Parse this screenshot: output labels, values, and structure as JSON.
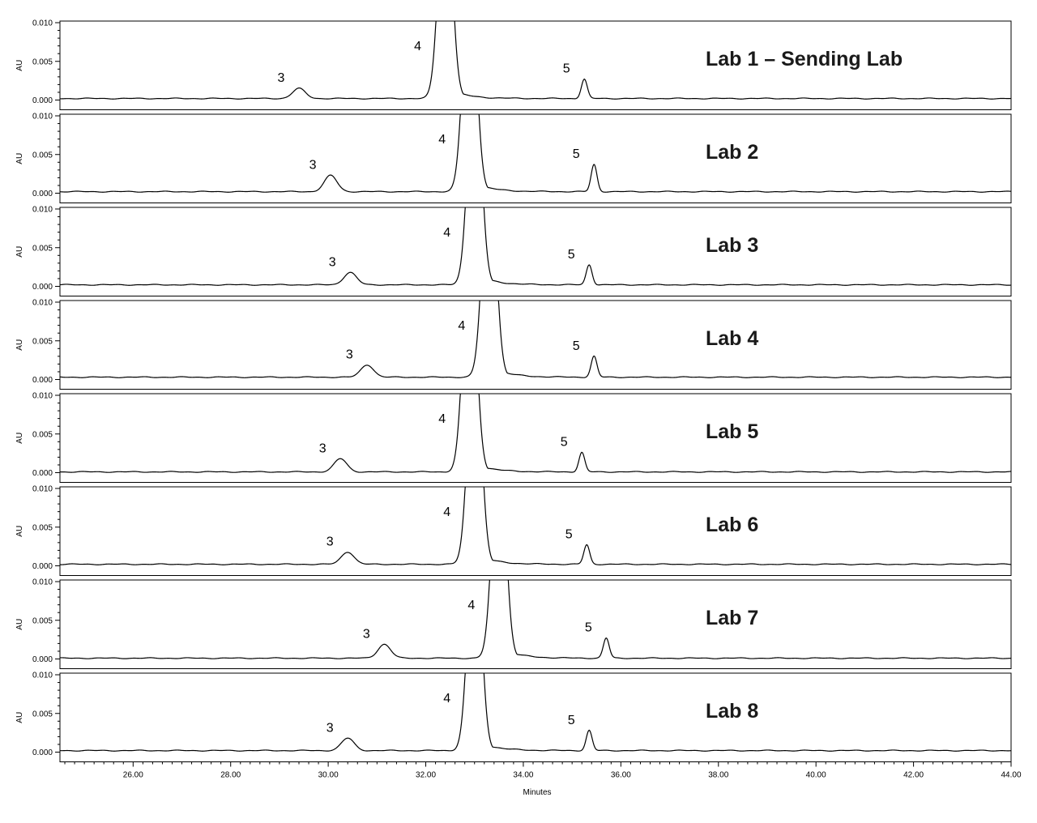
{
  "chart_data": {
    "type": "line",
    "xlabel": "Minutes",
    "ylabel": "AU",
    "xlim": [
      24.5,
      44.0
    ],
    "ylim": [
      0.0,
      0.01
    ],
    "x_ticks": [
      26.0,
      28.0,
      30.0,
      32.0,
      34.0,
      36.0,
      38.0,
      40.0,
      42.0,
      44.0
    ],
    "x_tick_labels": [
      "26.00",
      "28.00",
      "30.00",
      "32.00",
      "34.00",
      "36.00",
      "38.00",
      "40.00",
      "42.00",
      "44.00"
    ],
    "y_ticks": [
      0.0,
      0.005,
      0.01
    ],
    "y_tick_labels": [
      "0.000",
      "0.005",
      "0.010"
    ],
    "grid": false,
    "line_color": "#000000",
    "panels": [
      {
        "title": "Lab 1 – Sending Lab",
        "baseline": 0.0002,
        "peaks": [
          {
            "label": "3",
            "rt": 29.4,
            "height": 0.0013
          },
          {
            "label": "4",
            "rt": 32.4,
            "height": 0.03
          },
          {
            "label": "5",
            "rt": 35.25,
            "height": 0.0025
          }
        ]
      },
      {
        "title": "Lab 2",
        "baseline": 0.0002,
        "peaks": [
          {
            "label": "3",
            "rt": 30.05,
            "height": 0.0021
          },
          {
            "label": "4",
            "rt": 32.9,
            "height": 0.03
          },
          {
            "label": "5",
            "rt": 35.45,
            "height": 0.0035
          }
        ]
      },
      {
        "title": "Lab 3",
        "baseline": 0.0002,
        "peaks": [
          {
            "label": "3",
            "rt": 30.45,
            "height": 0.0016
          },
          {
            "label": "4",
            "rt": 33.0,
            "height": 0.03
          },
          {
            "label": "5",
            "rt": 35.35,
            "height": 0.0026
          }
        ]
      },
      {
        "title": "Lab 4",
        "baseline": 0.0003,
        "peaks": [
          {
            "label": "3",
            "rt": 30.8,
            "height": 0.0016
          },
          {
            "label": "4",
            "rt": 33.3,
            "height": 0.03
          },
          {
            "label": "5",
            "rt": 35.45,
            "height": 0.0027
          }
        ]
      },
      {
        "title": "Lab 5",
        "baseline": 0.0001,
        "peaks": [
          {
            "label": "3",
            "rt": 30.25,
            "height": 0.0017
          },
          {
            "label": "4",
            "rt": 32.9,
            "height": 0.03
          },
          {
            "label": "5",
            "rt": 35.2,
            "height": 0.0025
          }
        ]
      },
      {
        "title": "Lab 6",
        "baseline": 0.0002,
        "peaks": [
          {
            "label": "3",
            "rt": 30.4,
            "height": 0.0016
          },
          {
            "label": "4",
            "rt": 33.0,
            "height": 0.03
          },
          {
            "label": "5",
            "rt": 35.3,
            "height": 0.0025
          }
        ]
      },
      {
        "title": "Lab 7",
        "baseline": 0.0001,
        "peaks": [
          {
            "label": "3",
            "rt": 31.15,
            "height": 0.0018
          },
          {
            "label": "4",
            "rt": 33.5,
            "height": 0.03
          },
          {
            "label": "5",
            "rt": 35.7,
            "height": 0.0026
          }
        ]
      },
      {
        "title": "Lab 8",
        "baseline": 0.0002,
        "peaks": [
          {
            "label": "3",
            "rt": 30.4,
            "height": 0.0016
          },
          {
            "label": "4",
            "rt": 33.0,
            "height": 0.03
          },
          {
            "label": "5",
            "rt": 35.35,
            "height": 0.0026
          }
        ]
      }
    ]
  }
}
